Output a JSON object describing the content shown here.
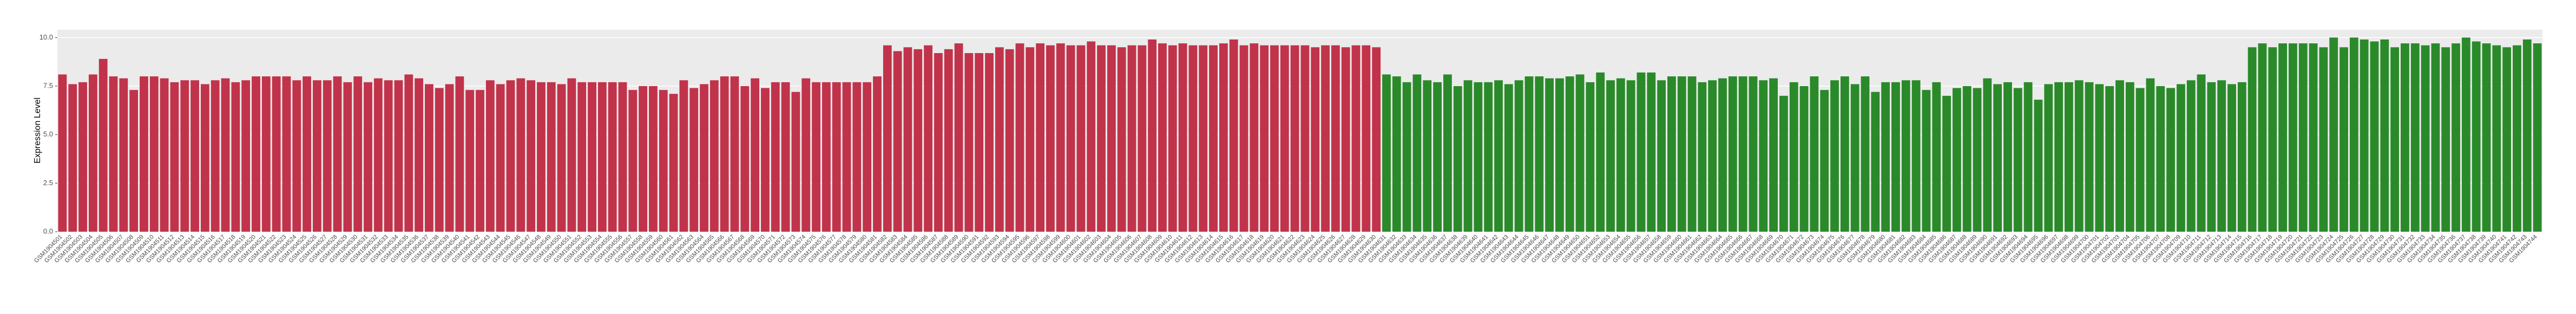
{
  "chart_data": {
    "type": "bar",
    "y_label": "Expression Level",
    "categories": [
      "GSM1904501",
      "GSM1904502",
      "GSM1904503",
      "GSM1904504",
      "GSM1904505",
      "GSM1904506",
      "GSM1904507",
      "GSM1904508",
      "GSM1904509",
      "GSM1904510",
      "GSM1904511",
      "GSM1904512",
      "GSM1904513",
      "GSM1904514",
      "GSM1904515",
      "GSM1904516",
      "GSM1904517",
      "GSM1904518",
      "GSM1904519",
      "GSM1904520",
      "GSM1904521",
      "GSM1904522",
      "GSM1904523",
      "GSM1904524",
      "GSM1904525",
      "GSM1904526",
      "GSM1904527",
      "GSM1904528",
      "GSM1904529",
      "GSM1904530",
      "GSM1904531",
      "GSM1904532",
      "GSM1904533",
      "GSM1904534",
      "GSM1904535",
      "GSM1904536",
      "GSM1904537",
      "GSM1904538",
      "GSM1904539",
      "GSM1904540",
      "GSM1904541",
      "GSM1904542",
      "GSM1904543",
      "GSM1904544",
      "GSM1904545",
      "GSM1904546",
      "GSM1904547",
      "GSM1904548",
      "GSM1904549",
      "GSM1904550",
      "GSM1904551",
      "GSM1904552",
      "GSM1904553",
      "GSM1904554",
      "GSM1904555",
      "GSM1904556",
      "GSM1904557",
      "GSM1904558",
      "GSM1904559",
      "GSM1904560",
      "GSM1904561",
      "GSM1904562",
      "GSM1904563",
      "GSM1904564",
      "GSM1904565",
      "GSM1904566",
      "GSM1904567",
      "GSM1904568",
      "GSM1904569",
      "GSM1904570",
      "GSM1904571",
      "GSM1904572",
      "GSM1904573",
      "GSM1904574",
      "GSM1904575",
      "GSM1904576",
      "GSM1904577",
      "GSM1904578",
      "GSM1904579",
      "GSM1904580",
      "GSM1904581",
      "GSM1904582",
      "GSM1904583",
      "GSM1904584",
      "GSM1904585",
      "GSM1904586",
      "GSM1904587",
      "GSM1904588",
      "GSM1904589",
      "GSM1904590",
      "GSM1904591",
      "GSM1904592",
      "GSM1904593",
      "GSM1904594",
      "GSM1904595",
      "GSM1904596",
      "GSM1904597",
      "GSM1904598",
      "GSM1904599",
      "GSM1904600",
      "GSM1904601",
      "GSM1904602",
      "GSM1904603",
      "GSM1904604",
      "GSM1904605",
      "GSM1904606",
      "GSM1904607",
      "GSM1904608",
      "GSM1904609",
      "GSM1904610",
      "GSM1904611",
      "GSM1904612",
      "GSM1904613",
      "GSM1904614",
      "GSM1904615",
      "GSM1904616",
      "GSM1904617",
      "GSM1904618",
      "GSM1904619",
      "GSM1904620",
      "GSM1904621",
      "GSM1904622",
      "GSM1904623",
      "GSM1904624",
      "GSM1904625",
      "GSM1904626",
      "GSM1904627",
      "GSM1904628",
      "GSM1904629",
      "GSM1904630",
      "GSM1904631",
      "GSM1904632",
      "GSM1904633",
      "GSM1904634",
      "GSM1904635",
      "GSM1904636",
      "GSM1904637",
      "GSM1904638",
      "GSM1904639",
      "GSM1904640",
      "GSM1904641",
      "GSM1904642",
      "GSM1904643",
      "GSM1904644",
      "GSM1904645",
      "GSM1904646",
      "GSM1904647",
      "GSM1904648",
      "GSM1904649",
      "GSM1904650",
      "GSM1904651",
      "GSM1904652",
      "GSM1904653",
      "GSM1904654",
      "GSM1904655",
      "GSM1904656",
      "GSM1904657",
      "GSM1904658",
      "GSM1904659",
      "GSM1904660",
      "GSM1904661",
      "GSM1904662",
      "GSM1904663",
      "GSM1904664",
      "GSM1904665",
      "GSM1904666",
      "GSM1904667",
      "GSM1904668",
      "GSM1904669",
      "GSM1904670",
      "GSM1904671",
      "GSM1904672",
      "GSM1904673",
      "GSM1904674",
      "GSM1904675",
      "GSM1904676",
      "GSM1904677",
      "GSM1904678",
      "GSM1904679",
      "GSM1904680",
      "GSM1904681",
      "GSM1904682",
      "GSM1904683",
      "GSM1904684",
      "GSM1904685",
      "GSM1904686",
      "GSM1904687",
      "GSM1904688",
      "GSM1904689",
      "GSM1904690",
      "GSM1904691",
      "GSM1904692",
      "GSM1904693",
      "GSM1904694",
      "GSM1904695",
      "GSM1904696",
      "GSM1904697",
      "GSM1904698",
      "GSM1904699",
      "GSM1904700",
      "GSM1904701",
      "GSM1904702",
      "GSM1904703",
      "GSM1904704",
      "GSM1904705",
      "GSM1904706",
      "GSM1904707",
      "GSM1904708",
      "GSM1904709",
      "GSM1904710",
      "GSM1904711",
      "GSM1904712",
      "GSM1904713",
      "GSM1904714",
      "GSM1904715",
      "GSM1904716",
      "GSM1904717",
      "GSM1904718",
      "GSM1904719",
      "GSM1904720",
      "GSM1904721",
      "GSM1904722",
      "GSM1904723",
      "GSM1904724",
      "GSM1904725",
      "GSM1904726",
      "GSM1904727",
      "GSM1904728",
      "GSM1904729",
      "GSM1904730",
      "GSM1904731",
      "GSM1904732",
      "GSM1904733",
      "GSM1904734",
      "GSM1904735",
      "GSM1904736",
      "GSM1904737",
      "GSM1904738",
      "GSM1904739",
      "GSM1904740",
      "GSM1904741",
      "GSM1904742",
      "GSM1904743",
      "GSM1904744"
    ],
    "values": [
      8.1,
      7.6,
      7.7,
      8.1,
      8.9,
      8.0,
      7.9,
      7.3,
      8.0,
      8.0,
      7.9,
      7.7,
      7.8,
      7.8,
      7.6,
      7.8,
      7.9,
      7.7,
      7.8,
      8.0,
      8.0,
      8.0,
      8.0,
      7.8,
      8.0,
      7.8,
      7.8,
      8.0,
      7.7,
      8.0,
      7.7,
      7.9,
      7.8,
      7.8,
      8.1,
      7.9,
      7.6,
      7.4,
      7.6,
      8.0,
      7.3,
      7.3,
      7.8,
      7.6,
      7.8,
      7.9,
      7.8,
      7.7,
      7.7,
      7.6,
      7.9,
      7.7,
      7.7,
      7.7,
      7.7,
      7.7,
      7.3,
      7.5,
      7.5,
      7.3,
      7.1,
      7.8,
      7.4,
      7.6,
      7.8,
      8.0,
      8.0,
      7.5,
      7.9,
      7.4,
      7.7,
      7.7,
      7.2,
      7.9,
      7.7,
      7.7,
      7.7,
      7.7,
      7.7,
      7.7,
      8.0,
      9.6,
      9.3,
      9.5,
      9.4,
      9.6,
      9.2,
      9.4,
      9.7,
      9.2,
      9.2,
      9.2,
      9.5,
      9.4,
      9.7,
      9.5,
      9.7,
      9.6,
      9.7,
      9.6,
      9.6,
      9.8,
      9.6,
      9.6,
      9.5,
      9.6,
      9.6,
      9.9,
      9.7,
      9.6,
      9.7,
      9.6,
      9.6,
      9.6,
      9.7,
      9.9,
      9.6,
      9.7,
      9.6,
      9.6,
      9.6,
      9.6,
      9.6,
      9.5,
      9.6,
      9.6,
      9.5,
      9.6,
      9.6,
      9.5,
      8.1,
      8.0,
      7.7,
      8.1,
      7.8,
      7.7,
      8.1,
      7.5,
      7.8,
      7.7,
      7.7,
      7.8,
      7.6,
      7.8,
      8.0,
      8.0,
      7.9,
      7.9,
      8.0,
      8.1,
      7.7,
      8.2,
      7.8,
      7.9,
      7.8,
      8.2,
      8.2,
      7.8,
      8.0,
      8.0,
      8.0,
      7.7,
      7.8,
      7.9,
      8.0,
      8.0,
      8.0,
      7.8,
      7.9,
      7.0,
      7.7,
      7.5,
      8.0,
      7.3,
      7.8,
      8.0,
      7.6,
      8.0,
      7.2,
      7.7,
      7.7,
      7.8,
      7.8,
      7.3,
      7.7,
      7.0,
      7.4,
      7.5,
      7.4,
      7.9,
      7.6,
      7.7,
      7.4,
      7.7,
      6.8,
      7.6,
      7.7,
      7.7,
      7.8,
      7.7,
      7.6,
      7.5,
      7.8,
      7.7,
      7.4,
      7.9,
      7.5,
      7.4,
      7.6,
      7.8,
      8.1,
      7.7,
      7.8,
      7.6,
      7.7,
      9.5,
      9.7,
      9.5,
      9.7,
      9.7,
      9.7,
      9.7,
      9.5,
      10.0,
      9.5,
      10.0,
      9.9,
      9.8,
      9.9,
      9.5,
      9.7,
      9.7,
      9.6,
      9.7,
      9.5,
      9.7,
      10.0,
      9.8,
      9.7,
      9.6,
      9.5,
      9.6,
      9.9,
      9.7
    ],
    "colors": [
      "#c1334b",
      "#c1334b",
      "#c1334b",
      "#c1334b",
      "#c1334b",
      "#c1334b",
      "#c1334b",
      "#c1334b",
      "#c1334b",
      "#c1334b",
      "#c1334b",
      "#c1334b",
      "#c1334b",
      "#c1334b",
      "#c1334b",
      "#c1334b",
      "#c1334b",
      "#c1334b",
      "#c1334b",
      "#c1334b",
      "#c1334b",
      "#c1334b",
      "#c1334b",
      "#c1334b",
      "#c1334b",
      "#c1334b",
      "#c1334b",
      "#c1334b",
      "#c1334b",
      "#c1334b",
      "#c1334b",
      "#c1334b",
      "#c1334b",
      "#c1334b",
      "#c1334b",
      "#c1334b",
      "#c1334b",
      "#c1334b",
      "#c1334b",
      "#c1334b",
      "#c1334b",
      "#c1334b",
      "#c1334b",
      "#c1334b",
      "#c1334b",
      "#c1334b",
      "#c1334b",
      "#c1334b",
      "#c1334b",
      "#c1334b",
      "#c1334b",
      "#c1334b",
      "#c1334b",
      "#c1334b",
      "#c1334b",
      "#c1334b",
      "#c1334b",
      "#c1334b",
      "#c1334b",
      "#c1334b",
      "#c1334b",
      "#c1334b",
      "#c1334b",
      "#c1334b",
      "#c1334b",
      "#c1334b",
      "#c1334b",
      "#c1334b",
      "#c1334b",
      "#c1334b",
      "#c1334b",
      "#c1334b",
      "#c1334b",
      "#c1334b",
      "#c1334b",
      "#c1334b",
      "#c1334b",
      "#c1334b",
      "#c1334b",
      "#c1334b",
      "#c1334b",
      "#c1334b",
      "#c1334b",
      "#c1334b",
      "#c1334b",
      "#c1334b",
      "#c1334b",
      "#c1334b",
      "#c1334b",
      "#c1334b",
      "#c1334b",
      "#c1334b",
      "#c1334b",
      "#c1334b",
      "#c1334b",
      "#c1334b",
      "#c1334b",
      "#c1334b",
      "#c1334b",
      "#c1334b",
      "#c1334b",
      "#c1334b",
      "#c1334b",
      "#c1334b",
      "#c1334b",
      "#c1334b",
      "#c1334b",
      "#c1334b",
      "#c1334b",
      "#c1334b",
      "#c1334b",
      "#c1334b",
      "#c1334b",
      "#c1334b",
      "#c1334b",
      "#c1334b",
      "#c1334b",
      "#c1334b",
      "#c1334b",
      "#c1334b",
      "#c1334b",
      "#c1334b",
      "#c1334b",
      "#c1334b",
      "#c1334b",
      "#c1334b",
      "#c1334b",
      "#c1334b",
      "#c1334b",
      "#c1334b",
      "#2a8a2a",
      "#2a8a2a",
      "#2a8a2a",
      "#2a8a2a",
      "#2a8a2a",
      "#2a8a2a",
      "#2a8a2a",
      "#2a8a2a",
      "#2a8a2a",
      "#2a8a2a",
      "#2a8a2a",
      "#2a8a2a",
      "#2a8a2a",
      "#2a8a2a",
      "#2a8a2a",
      "#2a8a2a",
      "#2a8a2a",
      "#2a8a2a",
      "#2a8a2a",
      "#2a8a2a",
      "#2a8a2a",
      "#2a8a2a",
      "#2a8a2a",
      "#2a8a2a",
      "#2a8a2a",
      "#2a8a2a",
      "#2a8a2a",
      "#2a8a2a",
      "#2a8a2a",
      "#2a8a2a",
      "#2a8a2a",
      "#2a8a2a",
      "#2a8a2a",
      "#2a8a2a",
      "#2a8a2a",
      "#2a8a2a",
      "#2a8a2a",
      "#2a8a2a",
      "#2a8a2a",
      "#2a8a2a",
      "#2a8a2a",
      "#2a8a2a",
      "#2a8a2a",
      "#2a8a2a",
      "#2a8a2a",
      "#2a8a2a",
      "#2a8a2a",
      "#2a8a2a",
      "#2a8a2a",
      "#2a8a2a",
      "#2a8a2a",
      "#2a8a2a",
      "#2a8a2a",
      "#2a8a2a",
      "#2a8a2a",
      "#2a8a2a",
      "#2a8a2a",
      "#2a8a2a",
      "#2a8a2a",
      "#2a8a2a",
      "#2a8a2a",
      "#2a8a2a",
      "#2a8a2a",
      "#2a8a2a",
      "#2a8a2a",
      "#2a8a2a",
      "#2a8a2a",
      "#2a8a2a",
      "#2a8a2a",
      "#2a8a2a",
      "#2a8a2a",
      "#2a8a2a",
      "#2a8a2a",
      "#2a8a2a",
      "#2a8a2a",
      "#2a8a2a",
      "#2a8a2a",
      "#2a8a2a",
      "#2a8a2a",
      "#2a8a2a",
      "#2a8a2a",
      "#2a8a2a",
      "#2a8a2a",
      "#2a8a2a",
      "#2a8a2a",
      "#2a8a2a",
      "#2a8a2a",
      "#2a8a2a",
      "#2a8a2a",
      "#2a8a2a",
      "#2a8a2a",
      "#2a8a2a",
      "#2a8a2a",
      "#2a8a2a",
      "#2a8a2a",
      "#2a8a2a",
      "#2a8a2a",
      "#2a8a2a",
      "#2a8a2a",
      "#2a8a2a",
      "#2a8a2a",
      "#2a8a2a",
      "#2a8a2a",
      "#2a8a2a",
      "#2a8a2a",
      "#2a8a2a",
      "#2a8a2a",
      "#2a8a2a",
      "#2a8a2a",
      "#2a8a2a",
      "#2a8a2a",
      "#2a8a2a",
      "#2a8a2a",
      "#2a8a2a"
    ],
    "ylim": [
      0,
      10.4
    ],
    "yticks": [
      {
        "value": 0,
        "label": "0.0"
      },
      {
        "value": 2.5,
        "label": "2.5"
      },
      {
        "value": 5,
        "label": "5.0"
      },
      {
        "value": 7.5,
        "label": "7.5"
      },
      {
        "value": 10,
        "label": "10.0"
      }
    ],
    "grid": true
  }
}
